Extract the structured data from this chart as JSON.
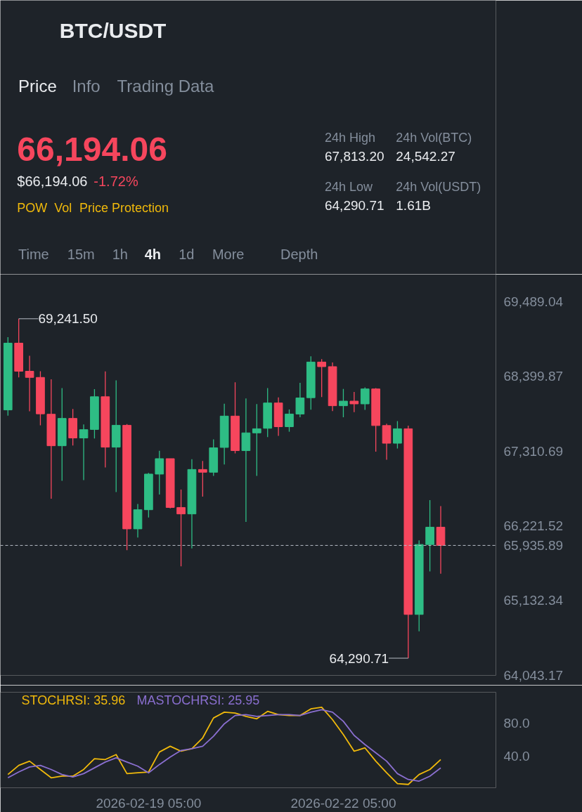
{
  "chart_data": [
    {
      "type": "other",
      "title": "BTC/USDT",
      "annotations": [
        "Price",
        "Info",
        "Trading Data",
        "66,194.06",
        "$66,194.06",
        "-1.72%",
        "POW",
        "Vol",
        "Price Protection",
        "24h High",
        "67,813.20",
        "24h Low",
        "64,290.71",
        "24h Vol(BTC)",
        "24,542.27",
        "24h Vol(USDT)",
        "1.61B",
        "Time",
        "15m",
        "1h",
        "4h",
        "1d",
        "More",
        "Depth"
      ]
    },
    {
      "type": "candlestick",
      "x": [
        "2026-02-17T01:00",
        "2026-02-17T05:00",
        "2026-02-17T09:00",
        "2026-02-17T13:00",
        "2026-02-17T17:00",
        "2026-02-17T21:00",
        "2026-02-18T01:00",
        "2026-02-18T05:00",
        "2026-02-18T09:00",
        "2026-02-18T13:00",
        "2026-02-18T17:00",
        "2026-02-18T21:00",
        "2026-02-19T01:00",
        "2026-02-19T05:00",
        "2026-02-19T09:00",
        "2026-02-19T13:00",
        "2026-02-19T17:00",
        "2026-02-19T21:00",
        "2026-02-20T01:00",
        "2026-02-20T05:00",
        "2026-02-20T09:00",
        "2026-02-20T13:00",
        "2026-02-20T17:00",
        "2026-02-20T21:00",
        "2026-02-21T01:00",
        "2026-02-21T05:00",
        "2026-02-21T09:00",
        "2026-02-21T13:00",
        "2026-02-21T17:00",
        "2026-02-21T21:00",
        "2026-02-22T01:00",
        "2026-02-22T05:00",
        "2026-02-22T09:00",
        "2026-02-22T13:00",
        "2026-02-22T17:00",
        "2026-02-22T21:00",
        "2026-02-23T01:00",
        "2026-02-23T05:00",
        "2026-02-23T09:00",
        "2026-02-23T13:00",
        "2026-02-23T17:00"
      ],
      "ohlc": [
        [
          67912,
          68973,
          67828,
          68886
        ],
        [
          68886,
          69241.5,
          68386,
          68476
        ],
        [
          68476,
          68701,
          67892,
          68386
        ],
        [
          68386,
          68476,
          67688,
          67855
        ],
        [
          67849,
          68359,
          66617,
          67389
        ],
        [
          67389,
          68231,
          66879,
          67788
        ],
        [
          67788,
          67926,
          67392,
          67503
        ],
        [
          67503,
          67701,
          66889,
          67624
        ],
        [
          67627,
          68214,
          67496,
          68104
        ],
        [
          68104,
          68473,
          67073,
          67369
        ],
        [
          67369,
          68342,
          66714,
          67688
        ],
        [
          67688,
          67704,
          65865,
          66177
        ],
        [
          66177,
          66540,
          66050,
          66456
        ],
        [
          66456,
          66993,
          66342,
          66976
        ],
        [
          66976,
          67315,
          66677,
          67201
        ],
        [
          67201,
          67201,
          66476,
          66489
        ],
        [
          66489,
          66751,
          65630,
          66395
        ],
        [
          66395,
          67194,
          65892,
          67043
        ],
        [
          67043,
          67167,
          66647,
          67003
        ],
        [
          67003,
          67483,
          66949,
          67359
        ],
        [
          67365,
          68003,
          67117,
          67822
        ],
        [
          67822,
          68315,
          67278,
          67318
        ],
        [
          67318,
          68080,
          66278,
          67577
        ],
        [
          67577,
          67996,
          66949,
          67637
        ],
        [
          67644,
          68231,
          67516,
          68013
        ],
        [
          68013,
          68094,
          67533,
          67667
        ],
        [
          67667,
          67919,
          67594,
          67852
        ],
        [
          67852,
          68308,
          67805,
          68087
        ],
        [
          68090,
          68694,
          67916,
          68610
        ],
        [
          68610,
          68654,
          68100,
          68543
        ],
        [
          68543,
          68604,
          67896,
          67973
        ],
        [
          67973,
          68218,
          67805,
          68040
        ],
        [
          68040,
          68174,
          67879,
          68000
        ],
        [
          68000,
          68241,
          67912,
          68218
        ],
        [
          68218,
          68231,
          67302,
          67684
        ],
        [
          67684,
          67711,
          67184,
          67426
        ],
        [
          67426,
          67748,
          67349,
          67637
        ],
        [
          67637,
          67681,
          64290.71,
          64929
        ],
        [
          64929,
          66009,
          64684,
          65949
        ],
        [
          65949,
          66597,
          65556,
          66201
        ],
        [
          66201,
          66509,
          65523,
          65935.89
        ]
      ],
      "colors": [
        "#2ebd85",
        "#f6465d",
        "#f6465d",
        "#f6465d",
        "#f6465d",
        "#2ebd85",
        "#f6465d",
        "#2ebd85",
        "#2ebd85",
        "#f6465d",
        "#2ebd85",
        "#f6465d",
        "#2ebd85",
        "#2ebd85",
        "#2ebd85",
        "#f6465d",
        "#f6465d",
        "#2ebd85",
        "#f6465d",
        "#2ebd85",
        "#2ebd85",
        "#f6465d",
        "#2ebd85",
        "#2ebd85",
        "#2ebd85",
        "#f6465d",
        "#2ebd85",
        "#2ebd85",
        "#2ebd85",
        "#f6465d",
        "#f6465d",
        "#2ebd85",
        "#f6465d",
        "#2ebd85",
        "#f6465d",
        "#f6465d",
        "#2ebd85",
        "#f6465d",
        "#2ebd85",
        "#2ebd85",
        "#f6465d"
      ],
      "xlim": [
        "2026-02-16T22:12",
        "2026-02-24T13:24"
      ],
      "ylim": [
        64040,
        69890
      ],
      "yticks": [
        {
          "value": 69489.04,
          "label": "69,489.04"
        },
        {
          "value": 68399.87,
          "label": "68,399.87"
        },
        {
          "value": 67310.69,
          "label": "67,310.69"
        },
        {
          "value": 66221.52,
          "label": "66,221.52"
        },
        {
          "value": 65132.34,
          "label": "65,132.34"
        },
        {
          "value": 64043.17,
          "label": "64,043.17"
        }
      ],
      "tick_labels": "y",
      "ref_lines": [
        {
          "axis": "y",
          "value": 65935.89,
          "label": "65,935.89",
          "color": "#b7bdc6",
          "line_style": "dashed"
        }
      ],
      "annotations": [
        {
          "text": "69,241.50",
          "x": "2026-02-17T05:00",
          "y": 69241.5
        },
        {
          "text": "64,290.71",
          "x": "2026-02-23T05:00",
          "y": 64290.71
        }
      ]
    },
    {
      "type": "line",
      "x": [
        "2026-02-17T01:00",
        "2026-02-17T05:00",
        "2026-02-17T09:00",
        "2026-02-17T13:00",
        "2026-02-17T17:00",
        "2026-02-17T21:00",
        "2026-02-18T01:00",
        "2026-02-18T05:00",
        "2026-02-18T09:00",
        "2026-02-18T13:00",
        "2026-02-18T17:00",
        "2026-02-18T21:00",
        "2026-02-19T01:00",
        "2026-02-19T05:00",
        "2026-02-19T09:00",
        "2026-02-19T13:00",
        "2026-02-19T17:00",
        "2026-02-19T21:00",
        "2026-02-20T01:00",
        "2026-02-20T05:00",
        "2026-02-20T09:00",
        "2026-02-20T13:00",
        "2026-02-20T17:00",
        "2026-02-20T21:00",
        "2026-02-21T01:00",
        "2026-02-21T05:00",
        "2026-02-21T09:00",
        "2026-02-21T13:00",
        "2026-02-21T17:00",
        "2026-02-21T21:00",
        "2026-02-22T01:00",
        "2026-02-22T05:00",
        "2026-02-22T09:00",
        "2026-02-22T13:00",
        "2026-02-22T17:00",
        "2026-02-22T21:00",
        "2026-02-23T01:00",
        "2026-02-23T05:00",
        "2026-02-23T09:00",
        "2026-02-23T13:00",
        "2026-02-23T17:00"
      ],
      "series": [
        {
          "name": "STOCHRSI: 35.96",
          "color": "#f0b90b",
          "values": [
            18,
            29,
            34,
            24,
            14,
            16,
            16,
            24,
            37,
            36,
            42,
            19,
            20,
            21,
            45,
            52,
            46,
            49,
            62,
            86,
            93,
            92,
            88,
            85,
            94,
            90,
            89,
            89,
            97,
            99,
            84,
            66,
            46,
            50,
            34,
            20,
            7,
            6,
            18,
            24,
            35.96
          ]
        },
        {
          "name": "MASTOCHRSI: 25.95",
          "color": "#8a6fd0",
          "values": [
            14,
            21,
            27,
            29,
            24,
            18,
            15,
            19,
            26,
            33,
            38,
            33,
            28,
            20,
            30,
            39,
            47,
            49,
            52,
            64,
            79,
            89,
            90,
            88,
            89,
            90,
            90,
            89,
            93,
            96,
            93,
            82,
            65,
            54,
            44,
            34,
            19,
            12,
            10,
            16,
            25.95
          ]
        }
      ],
      "xlim": [
        "2026-02-16T22:12",
        "2026-02-24T13:24"
      ],
      "xticks": [
        {
          "value": "2026-02-19T05:00",
          "label": "2026-02-19 05:00"
        },
        {
          "value": "2026-02-22T05:00",
          "label": "2026-02-22 05:00"
        }
      ],
      "ylim": [
        2,
        117
      ],
      "yticks": [
        {
          "value": 80,
          "label": "80.0"
        },
        {
          "value": 40,
          "label": "40.0"
        }
      ],
      "legend": "top left",
      "line_style": "solid"
    }
  ]
}
